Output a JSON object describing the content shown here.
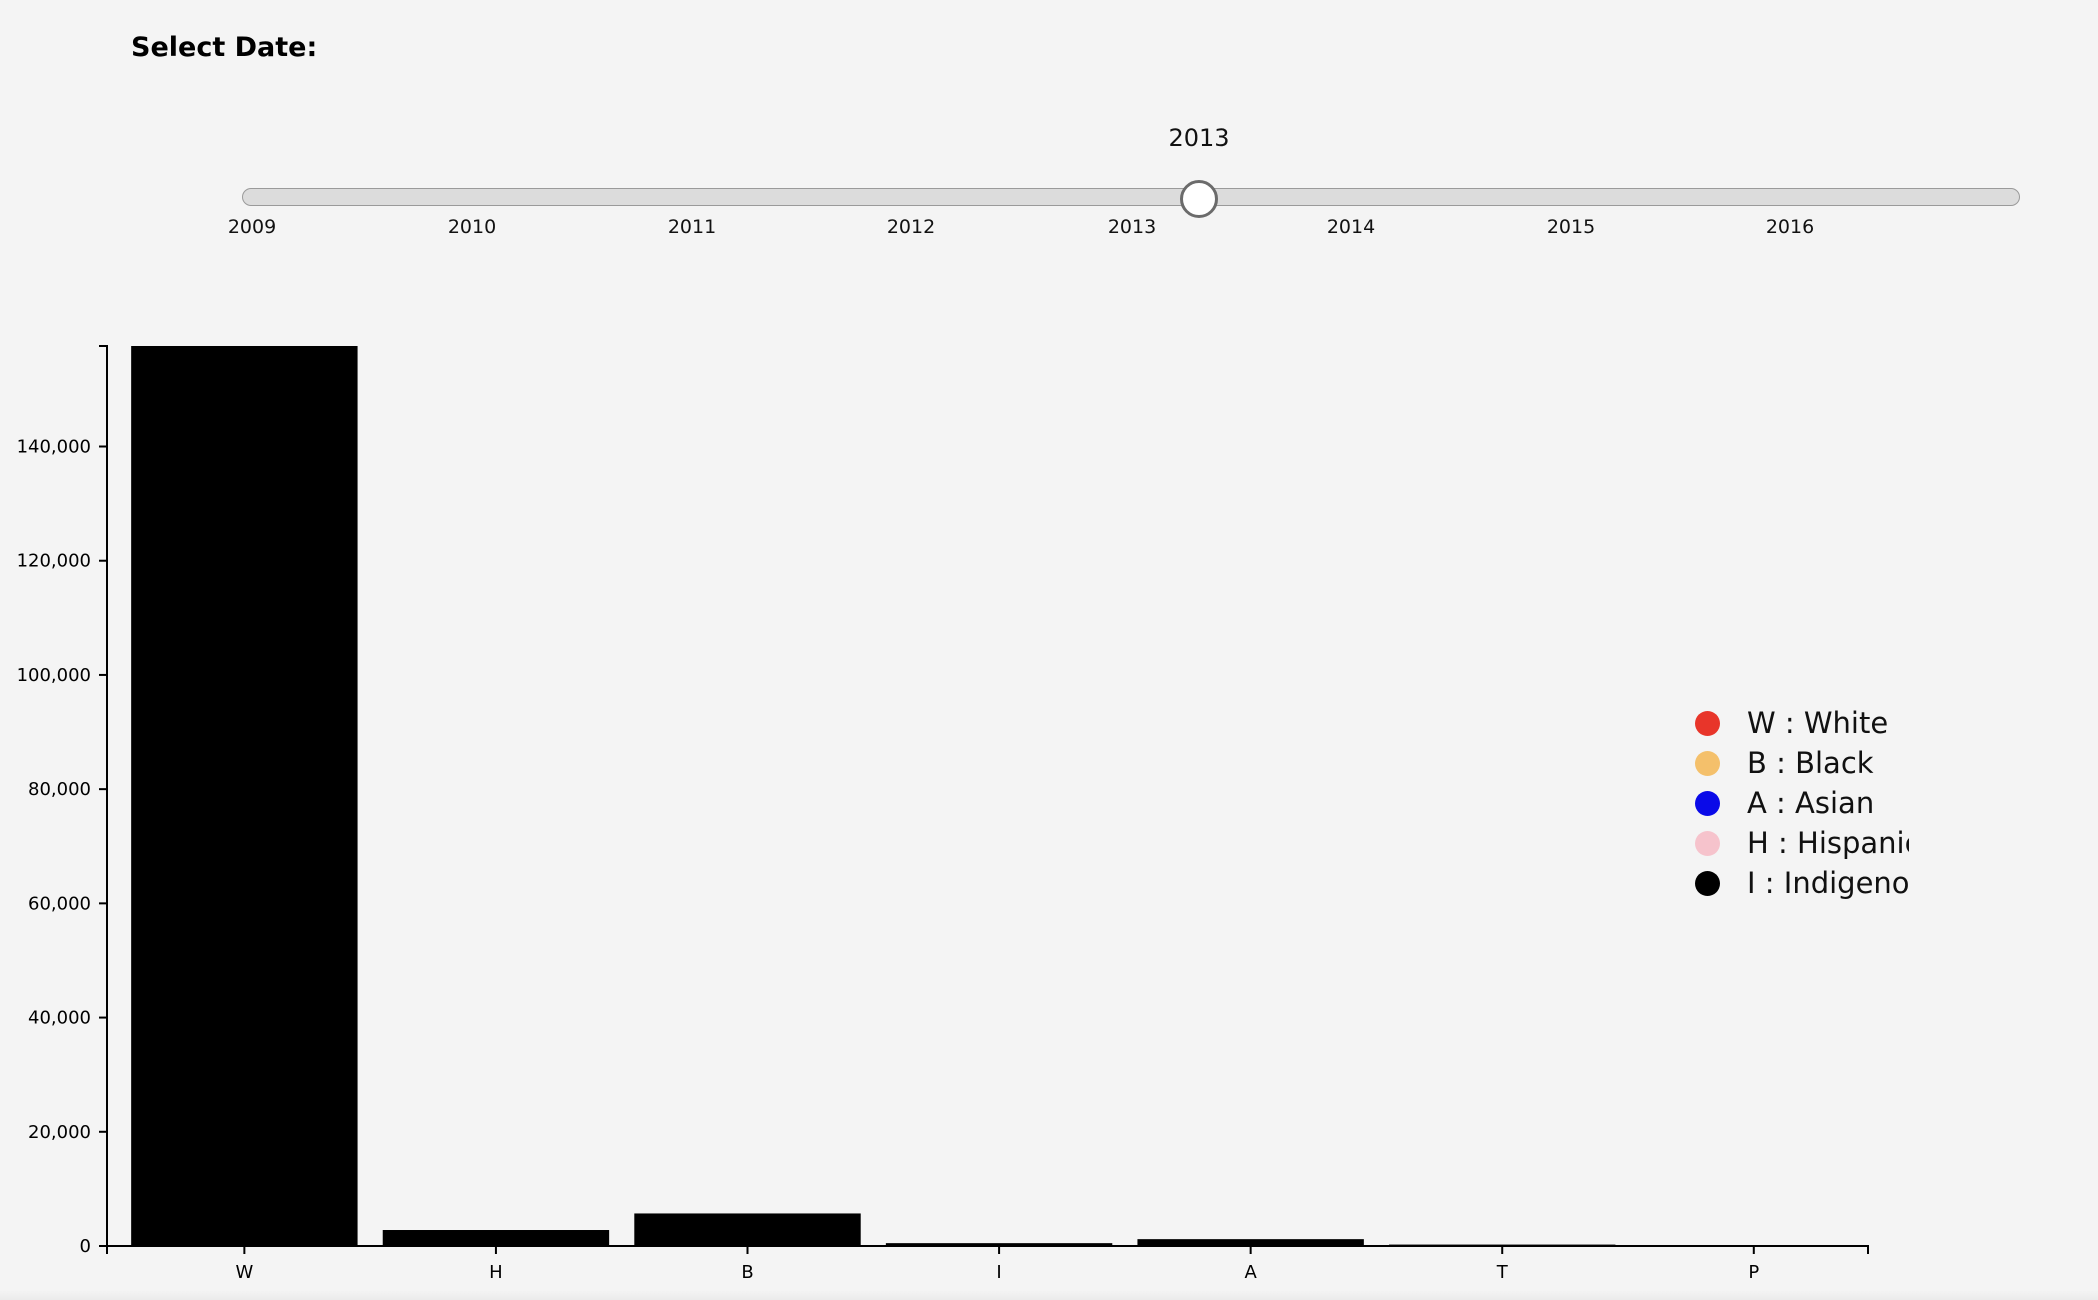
{
  "controls": {
    "select_label": "Select Date:",
    "current_year": "2013",
    "slider": {
      "min": 2009,
      "max": 2017,
      "value": 2013.31,
      "tick_labels": [
        "2009",
        "2010",
        "2011",
        "2012",
        "2013",
        "2014",
        "2015",
        "2016"
      ]
    }
  },
  "chart_data": {
    "type": "bar",
    "categories": [
      "W",
      "H",
      "B",
      "I",
      "A",
      "T",
      "P"
    ],
    "values": [
      157600,
      2800,
      5700,
      500,
      1200,
      250,
      0
    ],
    "bar_color": "#000000",
    "ylim": [
      0,
      157600
    ],
    "yticks": [
      0,
      20000,
      40000,
      60000,
      80000,
      100000,
      120000,
      140000
    ],
    "ytick_labels": [
      "0",
      "20,000",
      "40,000",
      "60,000",
      "80,000",
      "100,000",
      "120,000",
      "140,000"
    ],
    "xlabel": "",
    "ylabel": "",
    "grid": false,
    "legend_position": "right",
    "legend": [
      {
        "label": "W : White",
        "color": "#e8352a"
      },
      {
        "label": "B : Black",
        "color": "#f4c06b"
      },
      {
        "label": "A : Asian",
        "color": "#0a0ae8"
      },
      {
        "label": "H : Hispanic",
        "color": "#f6c3cc"
      },
      {
        "label": "I : Indigenous",
        "color": "#000000"
      }
    ]
  }
}
